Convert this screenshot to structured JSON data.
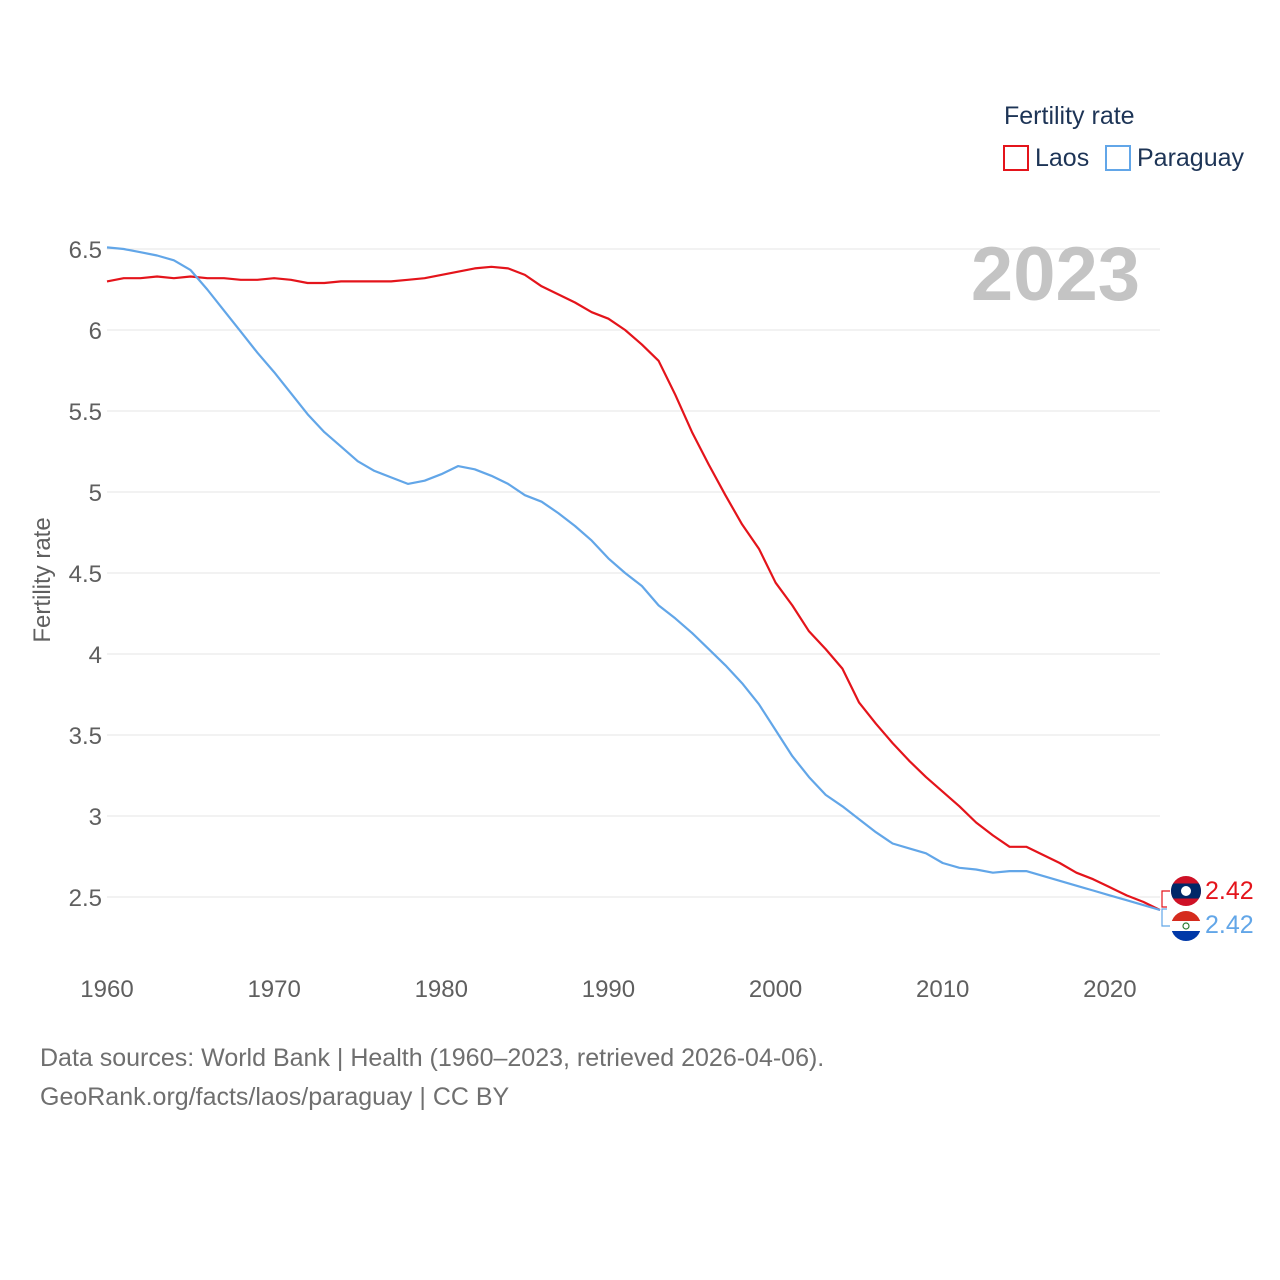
{
  "legend": {
    "title": "Fertility rate"
  },
  "year_label": "2023",
  "footer": {
    "source": "Data sources: World Bank | Health (1960–2023, retrieved 2026-04-06).",
    "url": "GeoRank.org/facts/laos/paraguay | CC BY"
  },
  "chart_data": {
    "type": "line",
    "title": "Fertility rate",
    "xlabel": "",
    "ylabel": "Fertility rate",
    "xlim": [
      1960,
      2023
    ],
    "ylim": [
      2.2,
      6.5
    ],
    "x_ticks": [
      1960,
      1970,
      1980,
      1990,
      2000,
      2010,
      2020
    ],
    "x_tick_labels": [
      "1960",
      "1970",
      "1980",
      "1990",
      "2000",
      "2010",
      "2020"
    ],
    "y_ticks": [
      2.5,
      3,
      3.5,
      4,
      4.5,
      5,
      5.5,
      6,
      6.5
    ],
    "y_tick_labels": [
      "2.5",
      "3",
      "3.5",
      "4",
      "4.5",
      "5",
      "5.5",
      "6",
      "6.5"
    ],
    "grid": true,
    "legend_position": "top-right",
    "x": [
      1960,
      1961,
      1962,
      1963,
      1964,
      1965,
      1966,
      1967,
      1968,
      1969,
      1970,
      1971,
      1972,
      1973,
      1974,
      1975,
      1976,
      1977,
      1978,
      1979,
      1980,
      1981,
      1982,
      1983,
      1984,
      1985,
      1986,
      1987,
      1988,
      1989,
      1990,
      1991,
      1992,
      1993,
      1994,
      1995,
      1996,
      1997,
      1998,
      1999,
      2000,
      2001,
      2002,
      2003,
      2004,
      2005,
      2006,
      2007,
      2008,
      2009,
      2010,
      2011,
      2012,
      2013,
      2014,
      2015,
      2016,
      2017,
      2018,
      2019,
      2020,
      2021,
      2022,
      2023
    ],
    "series": [
      {
        "name": "Laos",
        "color": "#e4141b",
        "end_label": "2.42",
        "values": [
          6.3,
          6.32,
          6.32,
          6.33,
          6.32,
          6.33,
          6.32,
          6.32,
          6.31,
          6.31,
          6.32,
          6.31,
          6.29,
          6.29,
          6.3,
          6.3,
          6.3,
          6.3,
          6.31,
          6.32,
          6.34,
          6.36,
          6.38,
          6.39,
          6.38,
          6.34,
          6.27,
          6.22,
          6.17,
          6.11,
          6.07,
          6.0,
          5.91,
          5.81,
          5.6,
          5.37,
          5.17,
          4.98,
          4.8,
          4.65,
          4.44,
          4.3,
          4.14,
          4.03,
          3.91,
          3.7,
          3.57,
          3.45,
          3.34,
          3.24,
          3.15,
          3.06,
          2.96,
          2.88,
          2.81,
          2.81,
          2.76,
          2.71,
          2.65,
          2.61,
          2.56,
          2.51,
          2.47,
          2.42
        ]
      },
      {
        "name": "Paraguay",
        "color": "#62a6e8",
        "end_label": "2.42",
        "values": [
          6.51,
          6.5,
          6.48,
          6.46,
          6.43,
          6.37,
          6.25,
          6.12,
          5.99,
          5.86,
          5.74,
          5.61,
          5.48,
          5.37,
          5.28,
          5.19,
          5.13,
          5.09,
          5.05,
          5.07,
          5.11,
          5.16,
          5.14,
          5.1,
          5.05,
          4.98,
          4.94,
          4.87,
          4.79,
          4.7,
          4.59,
          4.5,
          4.42,
          4.3,
          4.22,
          4.13,
          4.03,
          3.93,
          3.82,
          3.69,
          3.53,
          3.37,
          3.24,
          3.13,
          3.06,
          2.98,
          2.9,
          2.83,
          2.8,
          2.77,
          2.71,
          2.68,
          2.67,
          2.65,
          2.66,
          2.66,
          2.63,
          2.6,
          2.57,
          2.54,
          2.51,
          2.48,
          2.45,
          2.42
        ]
      }
    ]
  }
}
